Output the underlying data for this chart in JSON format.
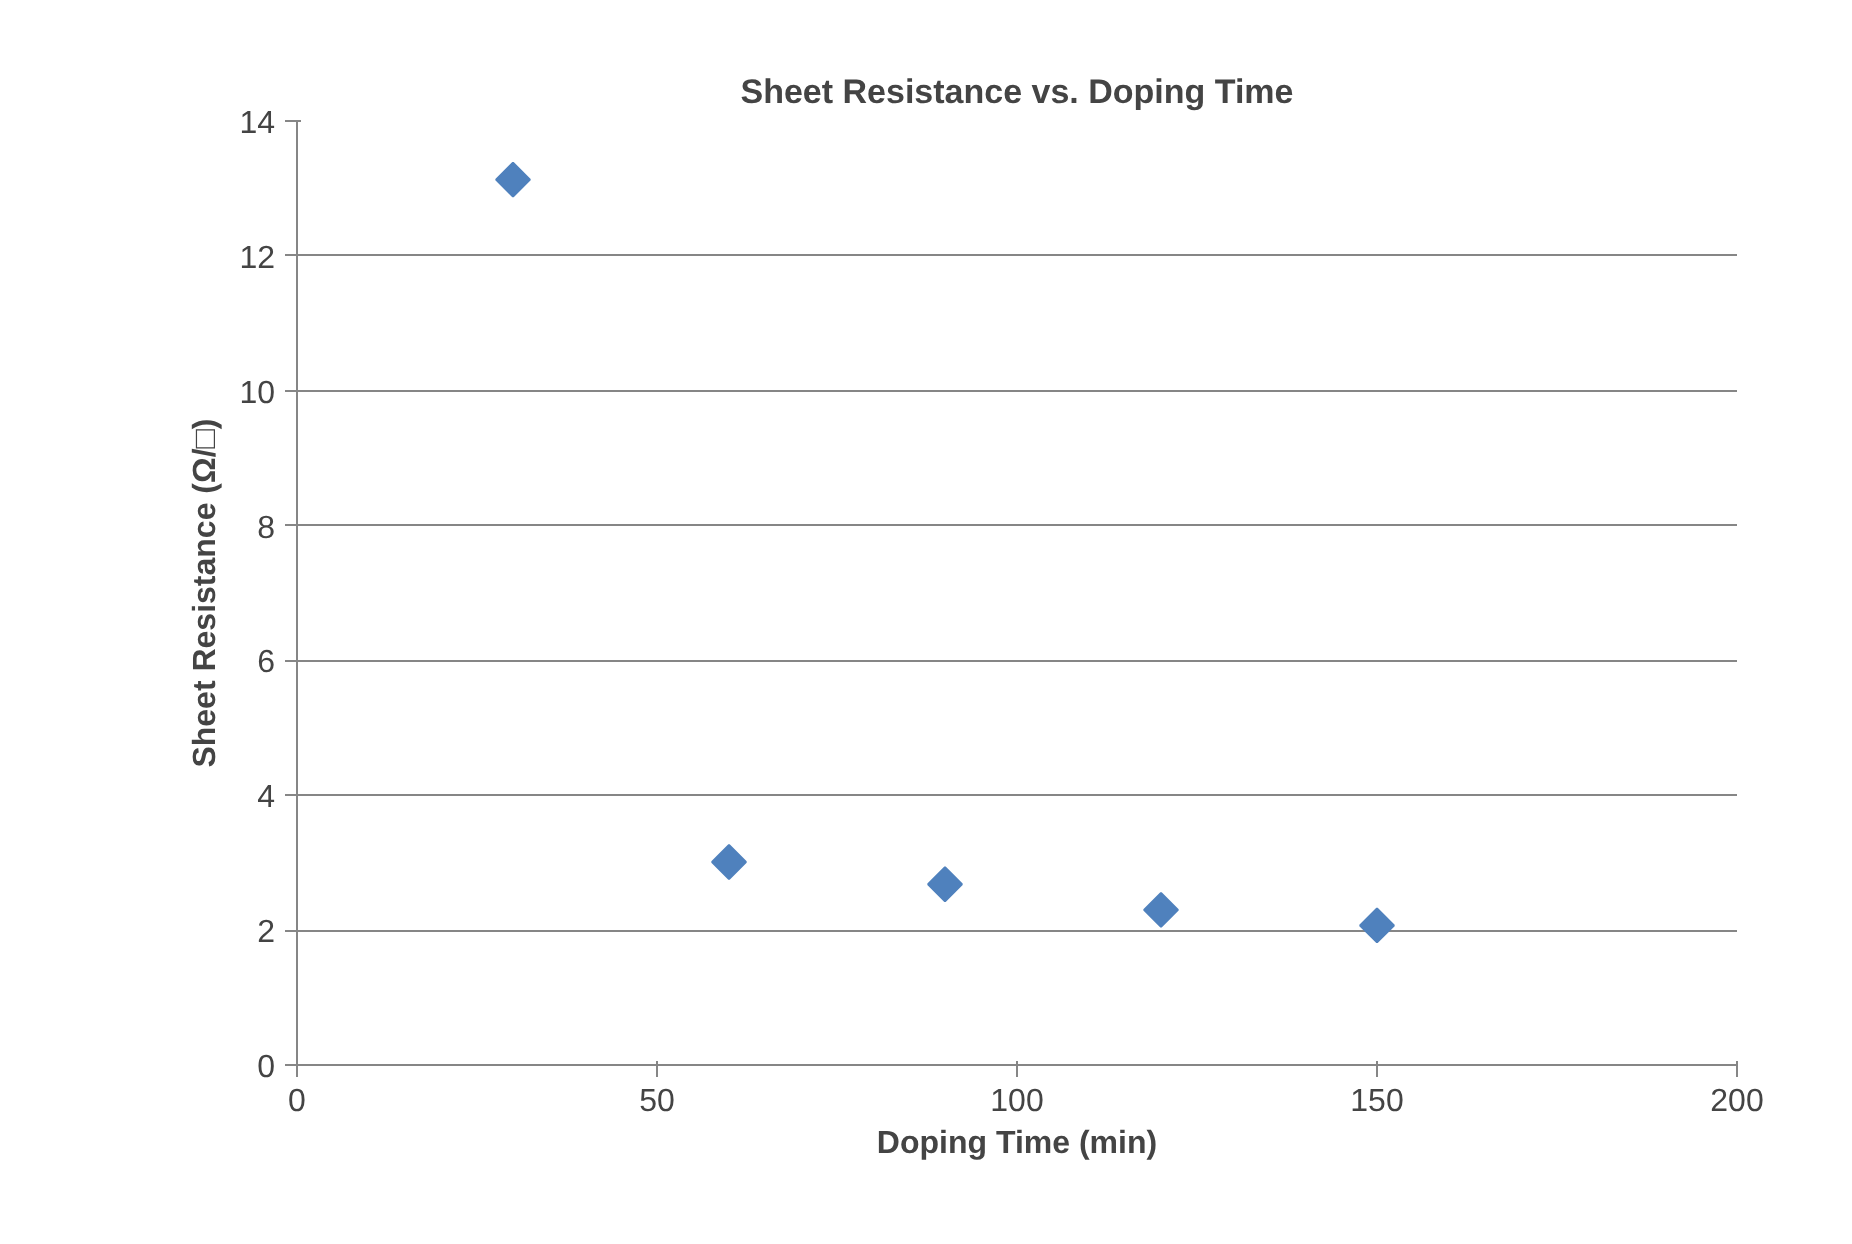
{
  "chart_data": {
    "type": "scatter",
    "title": "Sheet Resistance vs. Doping Time",
    "xlabel": "Doping Time (min)",
    "ylabel": "Sheet Resistance (Ω/□)",
    "x": [
      30,
      60,
      90,
      120,
      150
    ],
    "series": [
      {
        "color": "#4f81bd",
        "values": [
          13.13,
          3.01,
          2.68,
          2.3,
          2.07
        ]
      }
    ],
    "xlim": [
      0,
      200
    ],
    "xticks": [
      0,
      50,
      100,
      150,
      200
    ],
    "ylim": [
      0,
      14
    ],
    "yticks": [
      0,
      2,
      4,
      6,
      8,
      10,
      12,
      14
    ],
    "grid": "y",
    "marker": "diamond"
  }
}
